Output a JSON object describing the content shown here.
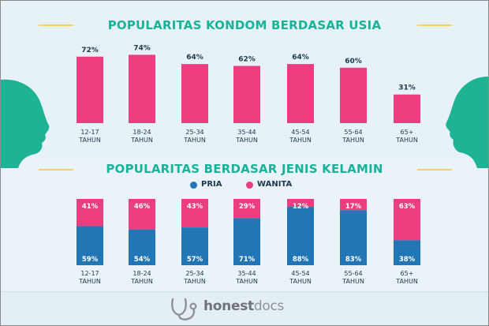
{
  "colors": {
    "teal": "#19b39a",
    "pink": "#ec3d7f",
    "blue": "#2276b6",
    "underline": "#f4d35e",
    "text": "#1c3a4a"
  },
  "chart_data": [
    {
      "type": "bar",
      "title": "POPULARITAS KONDOM BERDASAR USIA",
      "categories": [
        [
          "12-17",
          "TAHUN"
        ],
        [
          "18-24",
          "TAHUN"
        ],
        [
          "25-34",
          "TAHUN"
        ],
        [
          "35-44",
          "TAHUN"
        ],
        [
          "45-54",
          "TAHUN"
        ],
        [
          "55-64",
          "TAHUN"
        ],
        [
          "65+",
          "TAHUN"
        ]
      ],
      "values": [
        72,
        74,
        64,
        62,
        64,
        60,
        31
      ],
      "value_labels": [
        "72%",
        "74%",
        "64%",
        "62%",
        "64%",
        "60%",
        "31%"
      ],
      "color": "#ec3d7f"
    },
    {
      "type": "bar",
      "stacked": true,
      "title": "POPULARITAS BERDASAR JENIS KELAMIN",
      "legend_position": "top-center",
      "categories": [
        [
          "12-17",
          "TAHUN"
        ],
        [
          "18-24",
          "TAHUN"
        ],
        [
          "25-34",
          "TAHUN"
        ],
        [
          "35-44",
          "TAHUN"
        ],
        [
          "45-54",
          "TAHUN"
        ],
        [
          "55-64",
          "TAHUN"
        ],
        [
          "65+",
          "TAHUN"
        ]
      ],
      "series": [
        {
          "name": "PRIA",
          "values": [
            59,
            54,
            57,
            71,
            88,
            83,
            38
          ],
          "labels": [
            "59%",
            "54%",
            "57%",
            "71%",
            "88%",
            "83%",
            "38%"
          ],
          "color": "#2276b6"
        },
        {
          "name": "WANITA",
          "values": [
            41,
            46,
            43,
            29,
            12,
            17,
            63
          ],
          "labels": [
            "41%",
            "46%",
            "43%",
            "29%",
            "12%",
            "17%",
            "63%"
          ],
          "color": "#ec3d7f"
        }
      ]
    }
  ],
  "footer": {
    "brand_part1": "honest",
    "brand_part2": "docs",
    "logo_icon": "stethoscope-icon"
  }
}
